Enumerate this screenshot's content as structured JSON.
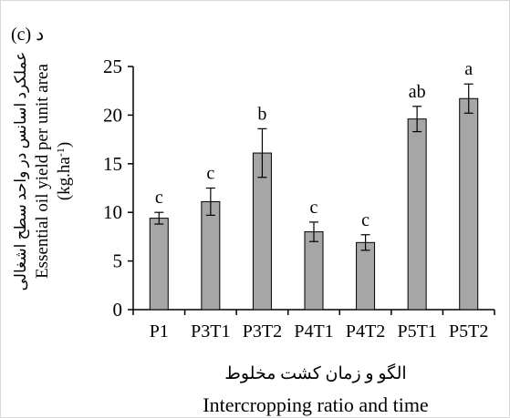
{
  "panel_label": "(c) د",
  "chart_data": {
    "type": "bar",
    "categories": [
      "P1",
      "P3T1",
      "P3T2",
      "P4T1",
      "P4T2",
      "P5T1",
      "P5T2"
    ],
    "values": [
      9.4,
      11.1,
      16.1,
      8.0,
      6.9,
      19.6,
      21.7
    ],
    "errors": [
      0.6,
      1.4,
      2.5,
      1.0,
      0.8,
      1.3,
      1.5
    ],
    "letters": [
      "c",
      "c",
      "b",
      "c",
      "c",
      "ab",
      "a"
    ],
    "ylim": [
      0,
      25
    ],
    "yticks": [
      0,
      5,
      10,
      15,
      20,
      25
    ],
    "ylabel_fa": "عملکرد اسانس در واحد سطح اشغالی",
    "ylabel_en": "Essential oil yield per unit area",
    "ylabel_unit_main": "(kg.ha",
    "ylabel_unit_sup": "-1",
    "ylabel_unit_end": ")",
    "xlabel_fa": "الگو و زمان کشت مخلوط",
    "xlabel_en": "Intercropping ratio and time",
    "bar_color": "#a6a6a6",
    "grid": false,
    "legend": "none"
  }
}
